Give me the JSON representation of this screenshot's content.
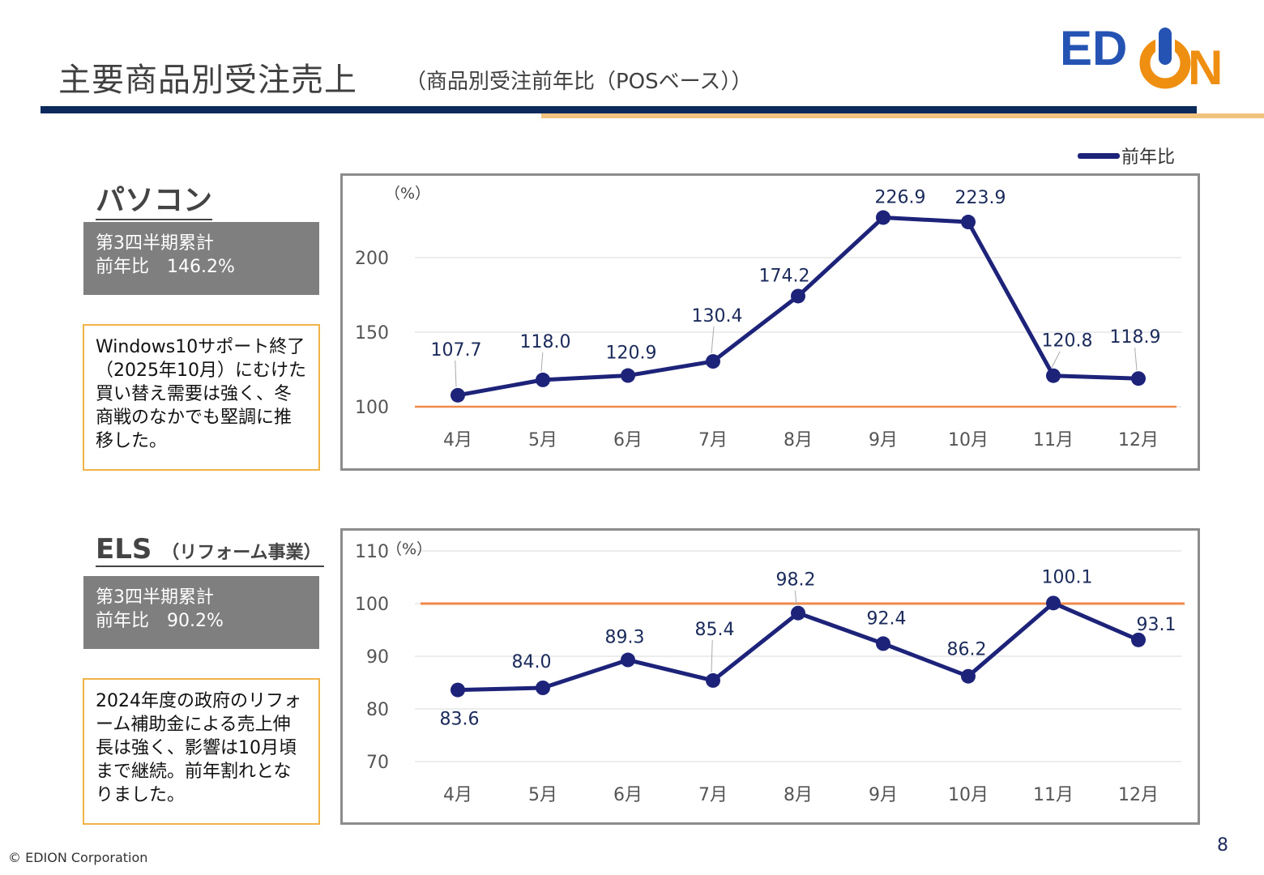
{
  "header": {
    "title": "主要商品別受注売上",
    "subtitle": "（商品別受注前年比（POSベース））",
    "logo_text": "EDION"
  },
  "legend": {
    "label": "前年比",
    "color": "#1e237a"
  },
  "sections": [
    {
      "heading": "パソコン",
      "heading_sub": "",
      "summary_line1": "第3四半期累計",
      "summary_line2": "前年比　146.2%",
      "note": "Windows10サポート終了（2025年10月）にむけた買い替え需要は強く、冬商戦のなかでも堅調に推移した。"
    },
    {
      "heading": "ELS",
      "heading_sub": "（リフォーム事業）",
      "summary_line1": "第3四半期累計",
      "summary_line2": "前年比　90.2%",
      "note": "2024年度の政府のリフォーム補助金による売上伸長は強く、影響は10月頃まで継続。前年割れとなりました。"
    }
  ],
  "chart_data": [
    {
      "type": "line",
      "unit_label": "（%）",
      "categories": [
        "4月",
        "5月",
        "6月",
        "7月",
        "8月",
        "9月",
        "10月",
        "11月",
        "12月"
      ],
      "series": [
        {
          "name": "前年比",
          "values": [
            107.7,
            118.0,
            120.9,
            130.4,
            174.2,
            226.9,
            223.9,
            120.8,
            118.9
          ],
          "labels": [
            "107.7",
            "118.0",
            "120.9",
            "130.4",
            "174.2",
            "226.9",
            "223.9",
            "120.8",
            "118.9"
          ],
          "color": "#1e237a"
        }
      ],
      "yticks": [
        "100",
        "150",
        "200"
      ],
      "ylim": [
        100,
        250
      ],
      "reference_line": {
        "value": 100,
        "color": "#f08a4b"
      },
      "grid": true
    },
    {
      "type": "line",
      "unit_label": "（%）",
      "categories": [
        "4月",
        "5月",
        "6月",
        "7月",
        "8月",
        "9月",
        "10月",
        "11月",
        "12月"
      ],
      "series": [
        {
          "name": "前年比",
          "values": [
            83.6,
            84.0,
            89.3,
            85.4,
            98.2,
            92.4,
            86.2,
            100.1,
            93.1
          ],
          "labels": [
            "83.6",
            "84.0",
            "89.3",
            "85.4",
            "98.2",
            "92.4",
            "86.2",
            "100.1",
            "93.1"
          ],
          "color": "#1e237a"
        }
      ],
      "yticks": [
        "70",
        "80",
        "90",
        "100",
        "110"
      ],
      "ylim": [
        70,
        110
      ],
      "reference_line": {
        "value": 100,
        "color": "#f08a4b"
      },
      "grid": true
    }
  ],
  "footer": {
    "copyright": "© EDION Corporation",
    "page_number": "8"
  }
}
